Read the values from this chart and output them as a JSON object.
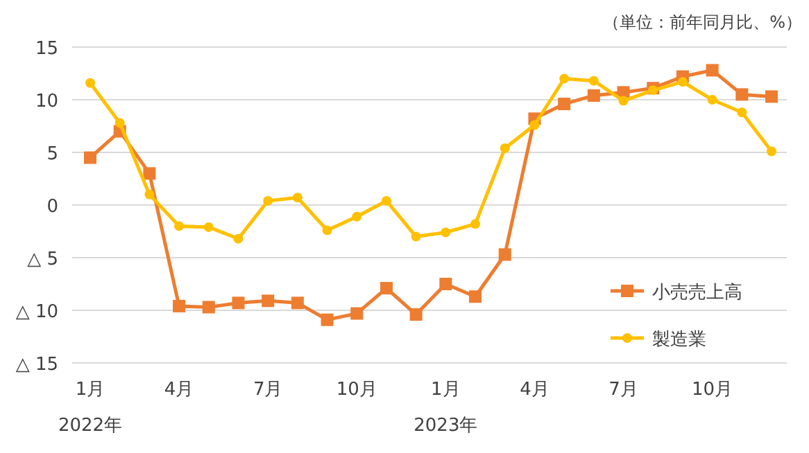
{
  "chart_data": {
    "type": "line",
    "categories": [
      "1月\n2022年",
      null,
      null,
      "4月",
      null,
      null,
      "7月",
      null,
      null,
      "10月",
      null,
      null,
      "1月\n2023年",
      null,
      null,
      "4月",
      null,
      null,
      "7月",
      null,
      null,
      "10月",
      null,
      null
    ],
    "series": [
      {
        "name": "小売売上高",
        "color": "#ed7d31",
        "marker": "square",
        "values": [
          4.5,
          7.0,
          3.0,
          -9.6,
          -9.7,
          -9.3,
          -9.1,
          -9.3,
          -10.9,
          -10.3,
          -7.9,
          -10.4,
          -7.5,
          -8.7,
          -4.7,
          8.2,
          9.6,
          10.4,
          10.7,
          11.1,
          12.2,
          12.8,
          10.5,
          10.3
        ]
      },
      {
        "name": "製造業",
        "color": "#ffc000",
        "marker": "circle",
        "values": [
          11.6,
          7.8,
          1.0,
          -2.0,
          -2.1,
          -3.2,
          0.4,
          0.7,
          -2.4,
          -1.1,
          0.4,
          -3.0,
          -2.6,
          -1.8,
          5.4,
          7.6,
          12.0,
          11.8,
          9.9,
          10.9,
          11.7,
          10.0,
          8.8,
          5.1
        ]
      }
    ],
    "ylim": [
      -15,
      15
    ],
    "yticks": [
      15,
      10,
      5,
      0,
      {
        "value": -5,
        "label": "△ 5"
      },
      {
        "value": -10,
        "label": "△ 10"
      },
      {
        "value": -15,
        "label": "△ 15"
      }
    ],
    "grid": "y",
    "legend": "bottom right",
    "line_style": "solid",
    "annotations": [
      "（単位：前年同月比、%）"
    ]
  }
}
